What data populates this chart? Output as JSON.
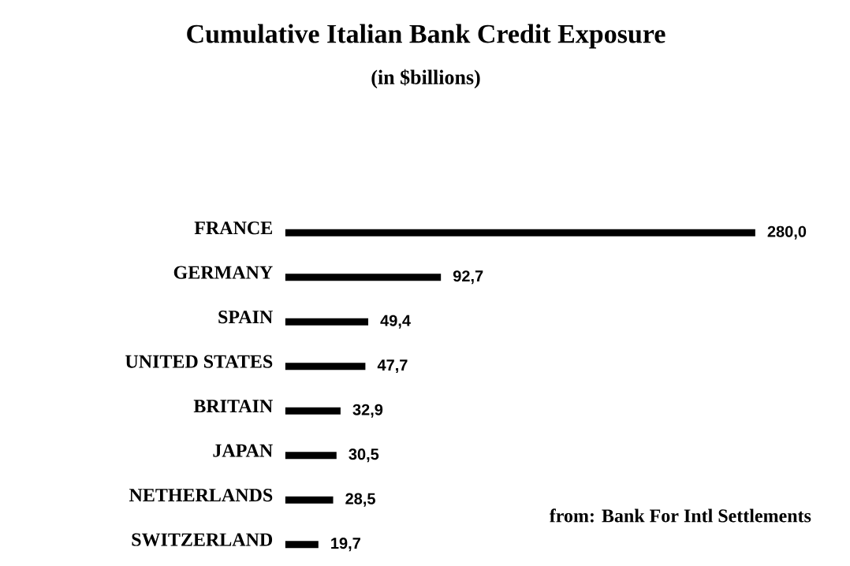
{
  "chart_data": {
    "type": "bar",
    "orientation": "horizontal",
    "title": "Cumulative Italian Bank Credit Exposure",
    "subtitle": "(in $billions)",
    "categories": [
      "FRANCE",
      "GERMANY",
      "SPAIN",
      "UNITED STATES",
      "BRITAIN",
      "JAPAN",
      "NETHERLANDS",
      "SWITZERLAND"
    ],
    "values": [
      280.0,
      92.7,
      49.4,
      47.7,
      32.9,
      30.5,
      28.5,
      19.7
    ],
    "value_labels": [
      "280,0",
      "92,7",
      "49,4",
      "47,7",
      "32,9",
      "30,5",
      "28,5",
      "19,7"
    ],
    "color": "#000000",
    "annotations": [
      "from: Bank For Intl Settlements"
    ]
  }
}
